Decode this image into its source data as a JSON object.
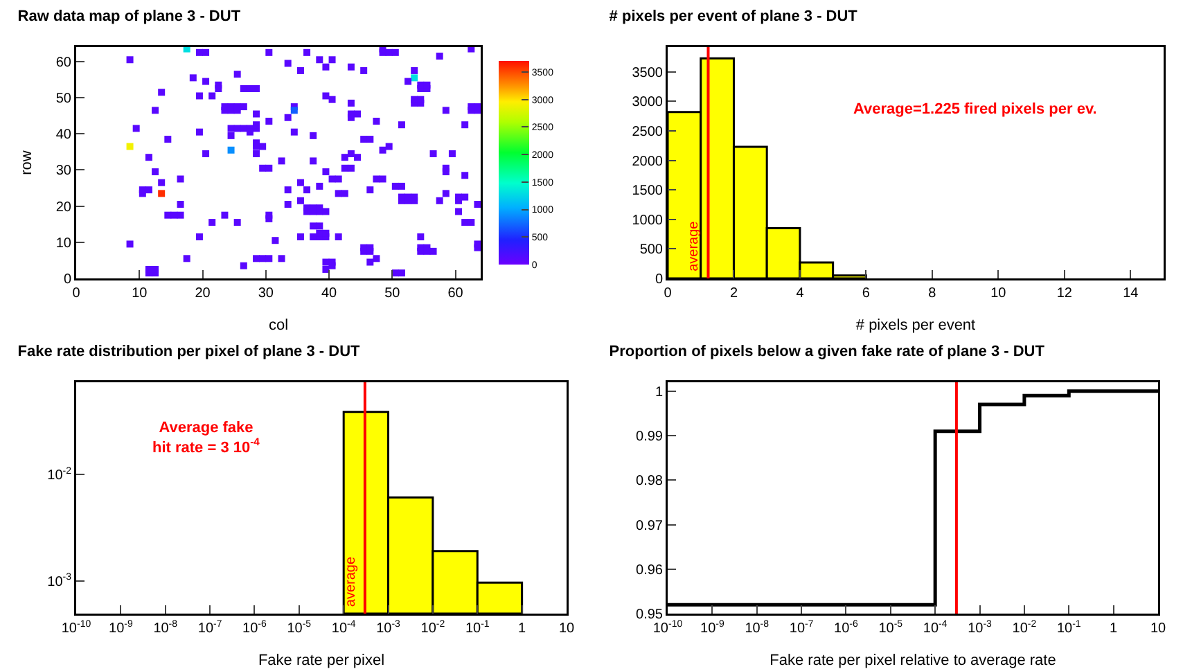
{
  "chart_data": [
    {
      "type": "scatter",
      "title": "Raw data map of plane 3 - DUT",
      "xlabel": "col",
      "ylabel": "row",
      "marker": "square",
      "x": [
        17.5,
        19.5,
        20.5,
        30.5,
        36.5,
        48.5,
        49.5,
        50.5,
        48.5,
        62.5,
        8.5,
        38.5,
        40.5,
        57.5,
        33.5,
        39.5,
        43.5,
        35.5,
        45.5,
        53.5,
        25.5,
        18.5,
        53.5,
        20.5,
        52.5,
        22.5,
        22.5,
        26.5,
        27.5,
        28.5,
        54.5,
        55.5,
        54.5,
        55.5,
        13.5,
        19.5,
        21.5,
        39.5,
        40.5,
        53.5,
        54.5,
        53.5,
        54.5,
        43.5,
        12.5,
        23.5,
        24.5,
        25.5,
        23.5,
        24.5,
        25.5,
        26.5,
        34.5,
        34.5,
        58.5,
        62.5,
        63.5,
        62.5,
        63.5,
        28.5,
        43.5,
        44.5,
        43.5,
        33.5,
        30.5,
        47.5,
        51.5,
        61.5,
        28.5,
        28.5,
        24.5,
        25.5,
        26.5,
        27.5,
        27.5,
        9.5,
        19.5,
        34.5,
        24.5,
        37.5,
        14.5,
        45.5,
        46.5,
        28.5,
        28.5,
        29.5,
        8.5,
        49.5,
        48.5,
        24.5,
        20.5,
        28.5,
        43.5,
        42.5,
        44.5,
        56.5,
        59.5,
        11.5,
        32.5,
        37.5,
        29.5,
        30.5,
        42.5,
        43.5,
        58.5,
        58.5,
        12.5,
        39.5,
        61.5,
        40.5,
        41.5,
        47.5,
        48.5,
        16.5,
        13.5,
        35.5,
        50.5,
        51.5,
        38.5,
        10.5,
        11.5,
        10.5,
        13.5,
        33.5,
        36.5,
        46.5,
        41.5,
        42.5,
        58.5,
        51.5,
        52.5,
        53.5,
        51.5,
        52.5,
        53.5,
        57.5,
        60.5,
        61.5,
        60.5,
        16.5,
        33.5,
        35.5,
        63.5,
        36.5,
        37.5,
        38.5,
        36.5,
        37.5,
        38.5,
        39.5,
        60.5,
        14.5,
        15.5,
        16.5,
        23.5,
        30.5,
        30.5,
        21.5,
        25.5,
        61.5,
        62.5,
        37.5,
        38.5,
        19.5,
        31.5,
        35.5,
        37.5,
        38.5,
        39.5,
        38.5,
        39.5,
        41.5,
        54.5,
        8.5,
        63.5,
        63.5,
        45.5,
        46.5,
        45.5,
        46.5,
        54.5,
        55.5,
        54.5,
        55.5,
        56.5,
        17.5,
        28.5,
        29.5,
        30.5,
        32.5,
        47.5,
        46.5,
        39.5,
        40.5,
        40.5,
        26.5,
        39.5,
        11.5,
        12.5,
        11.5,
        12.5,
        50.5,
        51.5
      ],
      "values": [
        63.5,
        62.5,
        62.5,
        62.5,
        62.5,
        62.5,
        62.5,
        62.5,
        63.5,
        63.5,
        60.5,
        60.5,
        60.5,
        61.5,
        59.5,
        58.5,
        58.5,
        57.5,
        57.5,
        57.5,
        56.5,
        55.5,
        55.5,
        54.5,
        54.5,
        53.5,
        52.5,
        52.5,
        52.5,
        52.5,
        52.5,
        52.5,
        53.5,
        53.5,
        51.5,
        50.5,
        50.5,
        50.5,
        49.5,
        48.5,
        48.5,
        49.5,
        49.5,
        48.5,
        46.5,
        46.5,
        46.5,
        46.5,
        47.5,
        47.5,
        47.5,
        47.5,
        47.5,
        46.5,
        46.5,
        46.5,
        46.5,
        47.5,
        47.5,
        45.5,
        45.5,
        45.5,
        44.5,
        44.5,
        43.5,
        43.5,
        42.5,
        42.5,
        41.5,
        42.5,
        41.5,
        41.5,
        41.5,
        41.5,
        40.5,
        41.5,
        40.5,
        40.5,
        39.5,
        39.5,
        38.5,
        38.5,
        38.5,
        37.5,
        36.5,
        36.5,
        36.5,
        36.5,
        35.5,
        35.5,
        34.5,
        34.5,
        34.5,
        33.5,
        33.5,
        34.5,
        34.5,
        33.5,
        32.5,
        32.5,
        30.5,
        30.5,
        30.5,
        30.5,
        29.5,
        30.5,
        29.5,
        29.5,
        28.5,
        27.5,
        27.5,
        27.5,
        27.5,
        27.5,
        26.5,
        26.5,
        25.5,
        25.5,
        25.5,
        24.5,
        24.5,
        23.5,
        23.5,
        24.5,
        24.5,
        24.5,
        23.5,
        23.5,
        23.5,
        21.5,
        21.5,
        21.5,
        22.5,
        22.5,
        22.5,
        21.5,
        22.5,
        22.5,
        21.5,
        20.5,
        20.5,
        21.5,
        20.5,
        19.5,
        19.5,
        19.5,
        18.5,
        18.5,
        18.5,
        18.5,
        18.5,
        17.5,
        17.5,
        17.5,
        17.5,
        16.5,
        17.5,
        15.5,
        15.5,
        15.5,
        15.5,
        14.5,
        14.5,
        11.5,
        10.5,
        11.5,
        11.5,
        11.5,
        11.5,
        12.5,
        12.5,
        11.5,
        11.5,
        9.5,
        8.5,
        9.5,
        7.5,
        7.5,
        8.5,
        8.5,
        8.5,
        8.5,
        7.5,
        7.5,
        7.5,
        5.5,
        5.5,
        5.5,
        5.5,
        5.5,
        5.5,
        4.5,
        4.5,
        4.5,
        3.5,
        3.5,
        2.5,
        1.5,
        1.5,
        2.5,
        2.5,
        1.5,
        1.5
      ],
      "cvalues": [
        1300,
        100,
        100,
        100,
        100,
        100,
        100,
        100,
        100,
        100,
        100,
        100,
        100,
        100,
        100,
        100,
        100,
        100,
        100,
        100,
        100,
        100,
        1300,
        100,
        100,
        100,
        100,
        100,
        100,
        100,
        100,
        100,
        100,
        100,
        100,
        100,
        100,
        100,
        100,
        100,
        100,
        100,
        100,
        100,
        100,
        100,
        100,
        100,
        100,
        100,
        100,
        100,
        100,
        700,
        100,
        100,
        100,
        100,
        100,
        100,
        100,
        100,
        100,
        100,
        100,
        100,
        100,
        100,
        100,
        100,
        100,
        100,
        100,
        100,
        100,
        100,
        100,
        100,
        100,
        100,
        100,
        100,
        100,
        100,
        100,
        100,
        2900,
        100,
        100,
        900,
        100,
        100,
        100,
        100,
        100,
        100,
        100,
        100,
        100,
        100,
        100,
        100,
        100,
        100,
        100,
        100,
        100,
        100,
        100,
        100,
        100,
        100,
        100,
        100,
        100,
        100,
        100,
        100,
        100,
        100,
        100,
        100,
        3600,
        100,
        100,
        100,
        100,
        100,
        100,
        100,
        100,
        100,
        100,
        100,
        100,
        100,
        100,
        100,
        100,
        100,
        100,
        100,
        100,
        100,
        100,
        100,
        100,
        100,
        100,
        100,
        100,
        100,
        100,
        100,
        100,
        100,
        100,
        100,
        100,
        100,
        100,
        100,
        100,
        100,
        100,
        100,
        100,
        100,
        100,
        100,
        100,
        100,
        100,
        100,
        100,
        100,
        100,
        100,
        100,
        100,
        100,
        100,
        100,
        100,
        100,
        100,
        100,
        100,
        100,
        100,
        100,
        100,
        100,
        100,
        100,
        100,
        100,
        100,
        100,
        100,
        100,
        100,
        100
      ],
      "xlim": [
        0,
        64
      ],
      "xticks": [
        0,
        10,
        20,
        30,
        40,
        50,
        60
      ],
      "ylim": [
        0,
        64
      ],
      "yticks": [
        0,
        10,
        20,
        30,
        40,
        50,
        60
      ],
      "clim": [
        0,
        3700
      ],
      "cticks": [
        0,
        500,
        1000,
        1500,
        2000,
        2500,
        3000,
        3500
      ]
    },
    {
      "type": "histogram",
      "title": "# pixels per event of plane 3 - DUT",
      "xlabel": "# pixels per event",
      "color": "#ffff00",
      "bins": [
        0,
        1,
        2,
        3,
        4,
        5,
        6
      ],
      "values": [
        2820,
        3730,
        2230,
        850,
        270,
        50
      ],
      "xlim": [
        0,
        15
      ],
      "xticks": [
        0,
        2,
        4,
        6,
        8,
        10,
        12,
        14
      ],
      "ylim": [
        0,
        3920
      ],
      "yticks": [
        0,
        500,
        1000,
        1500,
        2000,
        2500,
        3000,
        3500
      ],
      "ref_lines": [
        {
          "axis": "x",
          "value": 1.225,
          "label": "average",
          "color": "#ff0000"
        }
      ],
      "annotations": [
        "Average=1.225 fired pixels per ev."
      ]
    },
    {
      "type": "histogram",
      "title": "Fake rate distribution per pixel of plane 3 - DUT",
      "xlabel": "Fake rate per pixel",
      "color": "#ffff00",
      "log": "xy",
      "bins": [
        0.0001,
        0.001,
        0.01,
        0.1,
        1
      ],
      "values": [
        0.039,
        0.0061,
        0.0019,
        0.00096
      ],
      "xlim": [
        1e-10,
        10
      ],
      "xticks": [
        {
          "value": 1e-10,
          "label": "10$^{-10}$"
        },
        {
          "value": 1e-09,
          "label": "10$^{-9}$"
        },
        {
          "value": 1e-08,
          "label": "10$^{-8}$"
        },
        {
          "value": 1e-07,
          "label": "10$^{-7}$"
        },
        {
          "value": 1e-06,
          "label": "10$^{-6}$"
        },
        {
          "value": 1e-05,
          "label": "10$^{-5}$"
        },
        {
          "value": 0.0001,
          "label": "10$^{-4}$"
        },
        {
          "value": 0.001,
          "label": "10$^{-3}$"
        },
        {
          "value": 0.01,
          "label": "10$^{-2}$"
        },
        {
          "value": 0.1,
          "label": "10$^{-1}$"
        },
        1,
        10
      ],
      "ylim": [
        0.00049,
        0.074
      ],
      "yticks": [
        {
          "value": 0.001,
          "label": "10$^{-3}$"
        },
        {
          "value": 0.01,
          "label": "10$^{-2}$"
        }
      ],
      "ref_lines": [
        {
          "axis": "x",
          "value": 0.0003,
          "label": "average",
          "color": "#ff0000"
        }
      ],
      "annotations": [
        "Average fake\nhit rate = 3 10$^{-4}$"
      ]
    },
    {
      "type": "step",
      "title": "Proportion of pixels below a given fake rate of plane 3 - DUT",
      "xlabel": "Fake rate per pixel relative to average rate",
      "color": "#000000",
      "log": "x",
      "x": [
        1e-10,
        0.0001,
        0.001,
        0.01,
        0.1,
        10
      ],
      "values": [
        0.952,
        0.991,
        0.997,
        0.999,
        1.0,
        1.0
      ],
      "xlim": [
        1e-10,
        10
      ],
      "xticks": [
        {
          "value": 1e-10,
          "label": "10$^{-10}$"
        },
        {
          "value": 1e-09,
          "label": "10$^{-9}$"
        },
        {
          "value": 1e-08,
          "label": "10$^{-8}$"
        },
        {
          "value": 1e-07,
          "label": "10$^{-7}$"
        },
        {
          "value": 1e-06,
          "label": "10$^{-6}$"
        },
        {
          "value": 1e-05,
          "label": "10$^{-5}$"
        },
        {
          "value": 0.0001,
          "label": "10$^{-4}$"
        },
        {
          "value": 0.001,
          "label": "10$^{-3}$"
        },
        {
          "value": 0.01,
          "label": "10$^{-2}$"
        },
        {
          "value": 0.1,
          "label": "10$^{-1}$"
        },
        1,
        10
      ],
      "ylim": [
        0.95,
        1.002
      ],
      "yticks": [
        0.95,
        0.96,
        0.97,
        0.98,
        0.99,
        1
      ],
      "ref_lines": [
        {
          "axis": "x",
          "value": 0.0003,
          "color": "#ff0000"
        }
      ]
    }
  ]
}
